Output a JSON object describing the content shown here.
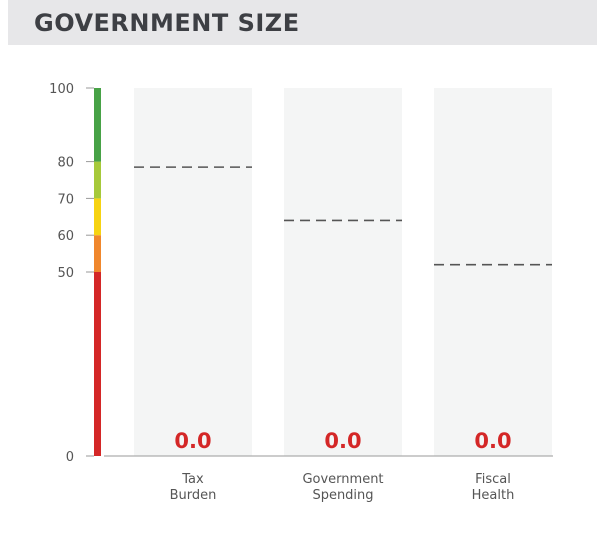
{
  "title": "GOVERNMENT SIZE",
  "chart_data": {
    "type": "bar",
    "title": "GOVERNMENT SIZE",
    "ylim": [
      0,
      100
    ],
    "yticks": [
      0,
      50,
      60,
      70,
      80,
      100
    ],
    "scale_bands": [
      {
        "from": 0,
        "to": 50,
        "color": "#d42727"
      },
      {
        "from": 50,
        "to": 60,
        "color": "#f0872c"
      },
      {
        "from": 60,
        "to": 70,
        "color": "#f6d312"
      },
      {
        "from": 70,
        "to": 80,
        "color": "#a6c93a"
      },
      {
        "from": 80,
        "to": 100,
        "color": "#47a246"
      }
    ],
    "categories": [
      {
        "line1": "Tax",
        "line2": "Burden"
      },
      {
        "line1": "Government",
        "line2": "Spending"
      },
      {
        "line1": "Fiscal",
        "line2": "Health"
      }
    ],
    "values": [
      0.0,
      0.0,
      0.0
    ],
    "value_labels": [
      "0.0",
      "0.0",
      "0.0"
    ],
    "reference_values": [
      78.5,
      64.0,
      52.0
    ],
    "reference_style": "dashed",
    "bar_background_color": "#f4f5f5",
    "value_label_color": "#d42727",
    "grid": false
  }
}
